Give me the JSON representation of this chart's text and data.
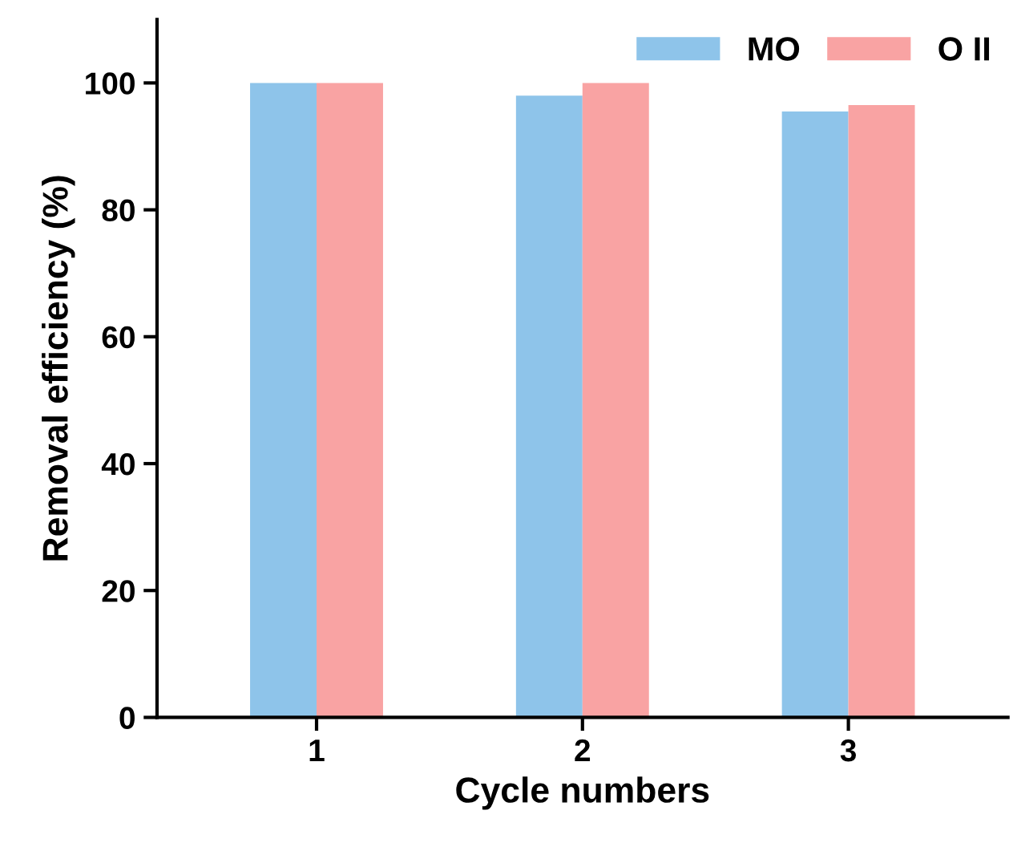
{
  "chart_data": {
    "type": "bar",
    "xlabel": "Cycle numbers",
    "ylabel": "Removal efficiency (%)",
    "categories": [
      "1",
      "2",
      "3"
    ],
    "series": [
      {
        "name": "MO",
        "color": "#8ec4ea",
        "values": [
          100,
          98,
          95.5
        ]
      },
      {
        "name": "O II",
        "color": "#f9a3a3",
        "values": [
          100,
          100,
          96.5
        ]
      }
    ],
    "ylim": [
      0,
      110
    ],
    "yticks": [
      0,
      20,
      40,
      60,
      80,
      100
    ],
    "grid": false,
    "legend": "top right"
  }
}
